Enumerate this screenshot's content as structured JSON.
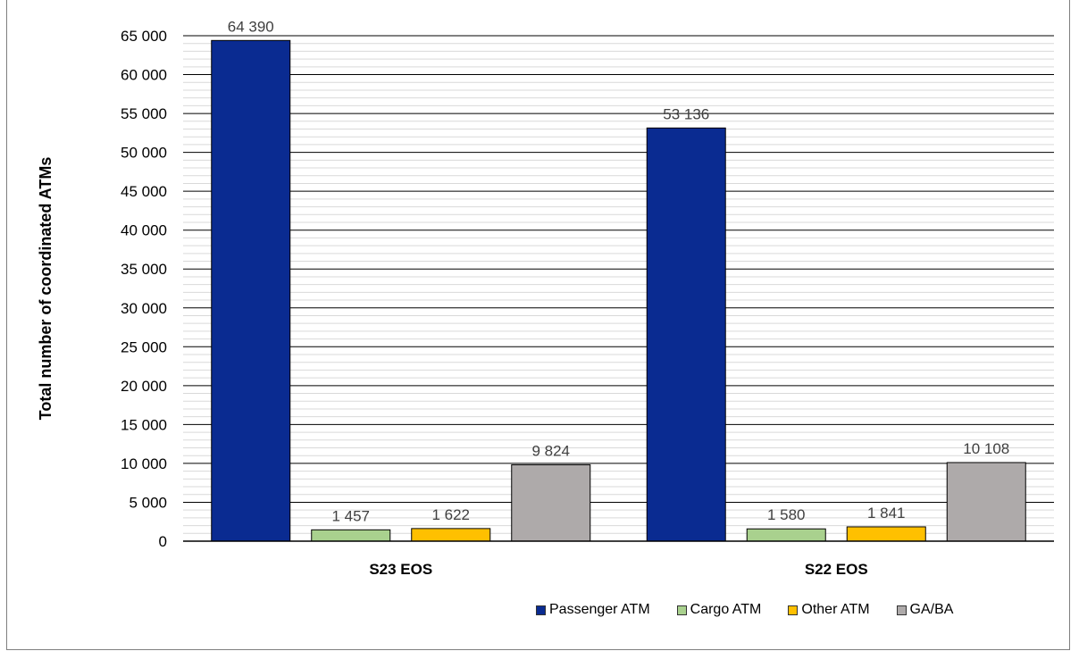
{
  "chart_data": {
    "type": "bar",
    "ylabel": "Total number of coordinated ATMs",
    "categories": [
      "S23 EOS",
      "S22 EOS"
    ],
    "ylim": [
      0,
      65000
    ],
    "ytick_step": 5000,
    "yticks": [
      "0",
      "5 000",
      "10 000",
      "15 000",
      "20 000",
      "25 000",
      "30 000",
      "35 000",
      "40 000",
      "45 000",
      "50 000",
      "55 000",
      "60 000",
      "65 000"
    ],
    "grid": true,
    "legend_position": "bottom-right",
    "series": [
      {
        "name": "Passenger ATM",
        "values": [
          64390,
          53136
        ],
        "labels": [
          "64 390",
          "53 136"
        ],
        "color": "#0a2b91"
      },
      {
        "name": "Cargo ATM",
        "values": [
          1457,
          1580
        ],
        "labels": [
          "1 457",
          "1 580"
        ],
        "color": "#a9d18e"
      },
      {
        "name": "Other ATM",
        "values": [
          1622,
          1841
        ],
        "labels": [
          "1 622",
          "1 841"
        ],
        "color": "#ffc000"
      },
      {
        "name": "GA/BA",
        "values": [
          9824,
          10108
        ],
        "labels": [
          "9 824",
          "10 108"
        ],
        "color": "#aeaaaa"
      }
    ]
  }
}
